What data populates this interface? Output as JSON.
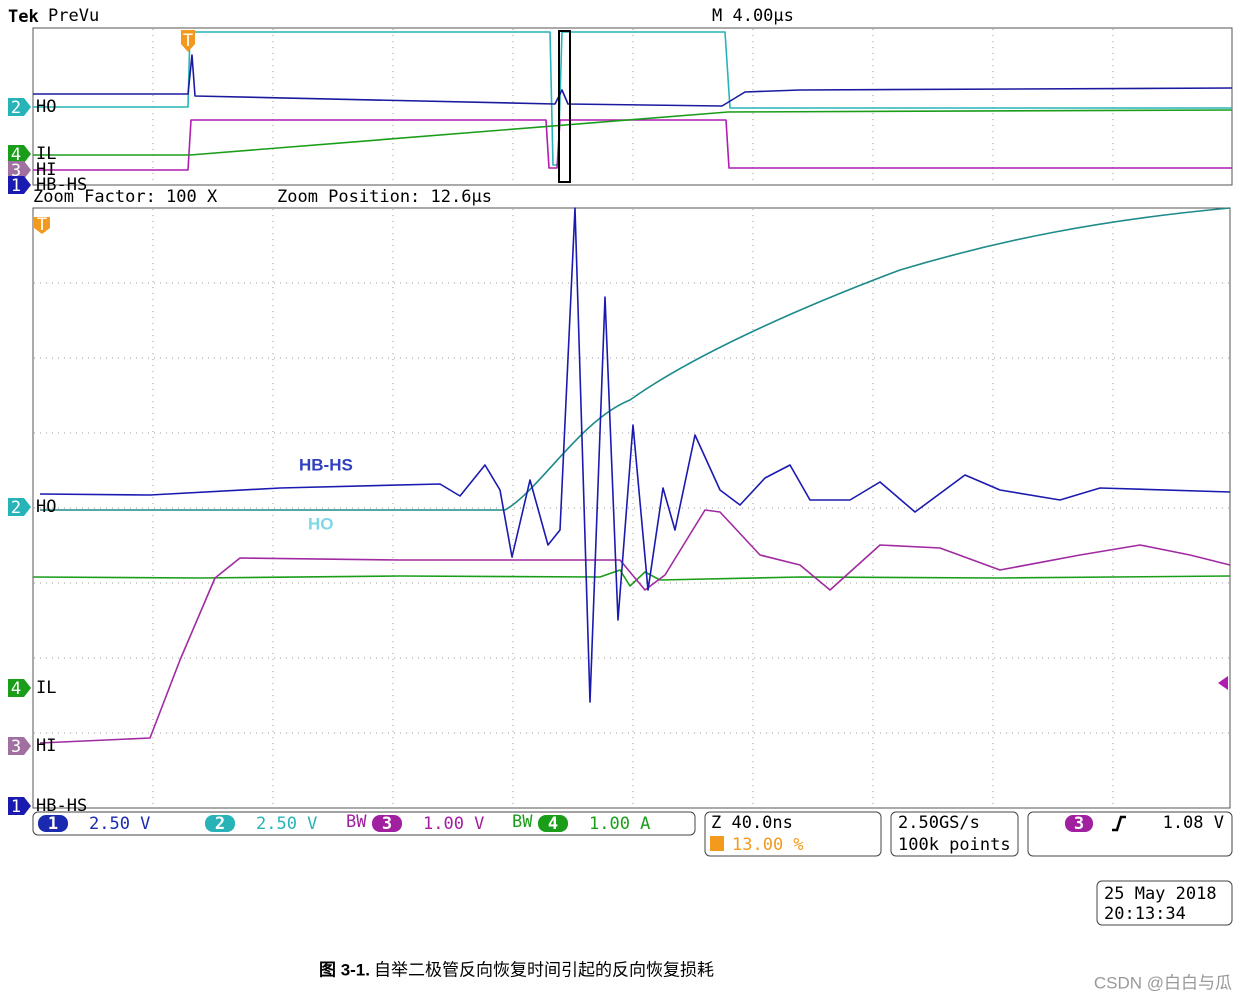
{
  "header": {
    "brand": "Tek",
    "mode": "PreVu",
    "timebase": "M 4.00µs"
  },
  "overview": {
    "trigger": "T",
    "markers": [
      "2",
      "4",
      "3",
      "1"
    ],
    "labels": [
      "HO",
      "IL",
      "HI",
      "HB-HS"
    ]
  },
  "zoom": {
    "factor": "Zoom Factor: 100 X",
    "position": "Zoom Position: 12.6µs",
    "trigger": "T",
    "markers": [
      "2",
      "4",
      "3",
      "1"
    ],
    "labels": [
      "HO",
      "IL",
      "HI",
      "HB-HS"
    ],
    "annotations": [
      "HB-HS",
      "HO"
    ]
  },
  "status": {
    "channels": [
      {
        "number": "1",
        "scale": "2.50 V"
      },
      {
        "number": "2",
        "scale": "2.50 V"
      },
      {
        "number": "3",
        "scale": "1.00 V"
      },
      {
        "number": "4",
        "scale": "1.00 A"
      }
    ],
    "bandwidth": "BW",
    "zoom_scale": "Z 40.0ns",
    "trigger_position": "13.00 %",
    "sample_rate": "2.50GS/s",
    "record_length": "100k points",
    "trigger_source": "3",
    "trigger_level": "1.08 V",
    "date": "25 May 2018",
    "time": "20:13:34"
  },
  "caption": {
    "label": "图 3-1.",
    "text": "自举二极管反向恢复时间引起的反向恢复损耗"
  },
  "watermark": "CSDN @白白与瓜"
}
